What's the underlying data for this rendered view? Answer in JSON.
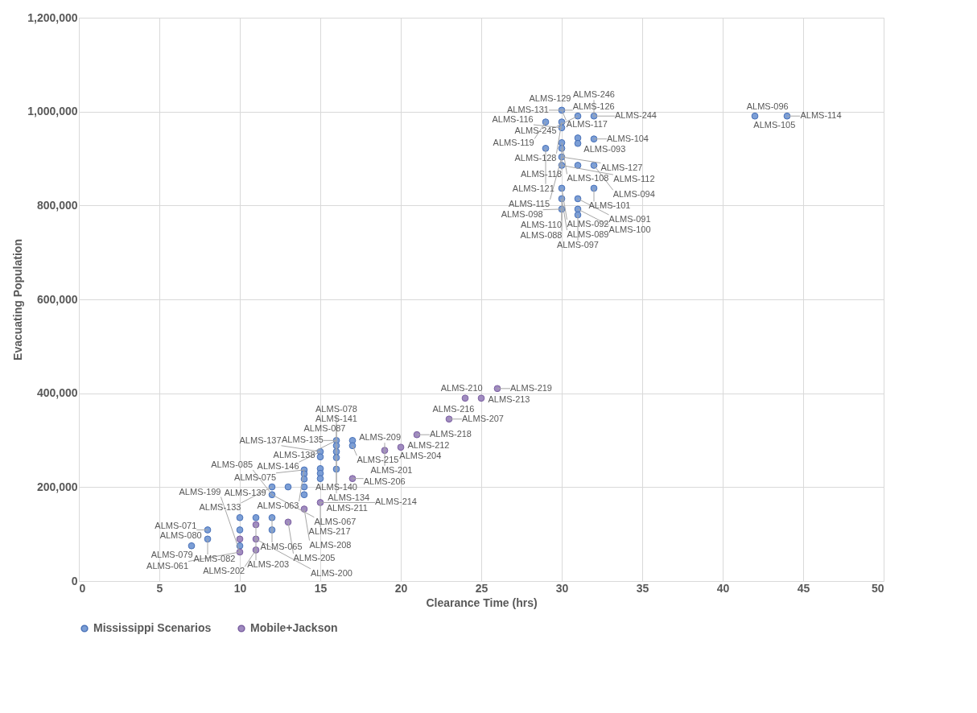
{
  "chart_data": {
    "type": "scatter",
    "xlabel": "Clearance Time (hrs)",
    "ylabel": "Evacuating Population",
    "xlim": [
      0,
      50
    ],
    "xticks": [
      0,
      5,
      10,
      15,
      20,
      25,
      30,
      35,
      40,
      45,
      50
    ],
    "ylim": [
      0,
      1200000
    ],
    "yticks": [
      0,
      {
        "value": 200000,
        "label": "200,000"
      },
      {
        "value": 400000,
        "label": "400,000"
      },
      {
        "value": 600000,
        "label": "600,000"
      },
      {
        "value": 800000,
        "label": "800,000"
      },
      {
        "value": 1000000,
        "label": "1,000,000"
      },
      {
        "value": 1200000,
        "label": "1,200,000"
      }
    ],
    "grid": true,
    "legend": "bottom",
    "marker": "circle",
    "series": [
      {
        "name": "Mississippi Scenarios",
        "color": "#7b9ed6",
        "x": [
          30,
          31,
          32,
          29,
          30,
          30,
          31,
          31,
          32,
          30,
          30,
          29,
          30,
          30,
          31,
          32,
          32,
          30,
          30,
          31,
          30,
          31,
          31,
          42,
          44,
          7,
          8,
          8,
          10,
          10,
          10,
          11,
          12,
          12,
          12,
          12,
          13,
          14,
          14,
          14,
          14,
          14,
          15,
          15,
          15,
          15,
          15,
          16,
          16,
          16,
          16,
          16,
          17,
          17
        ],
        "values": [
          1003000,
          990500,
          990500,
          977800,
          977800,
          965500,
          943800,
          932200,
          941700,
          933800,
          921700,
          921700,
          903300,
          885500,
          885500,
          885500,
          836700,
          836700,
          814400,
          814400,
          792200,
          792200,
          780000,
          990500,
          990500,
          75000,
          89400,
          108900,
          135000,
          108900,
          75000,
          135000,
          135000,
          108900,
          200500,
          183900,
          200500,
          236700,
          228300,
          217200,
          200500,
          183900,
          275600,
          264400,
          239400,
          229400,
          218300,
          299400,
          288300,
          275600,
          262800,
          238300,
          299400,
          288300
        ]
      },
      {
        "name": "Mobile+Jackson",
        "color": "#a08bc0",
        "x": [
          10,
          10,
          11,
          11,
          11,
          13,
          14,
          15,
          17,
          19,
          20,
          21,
          23,
          24,
          25,
          26
        ],
        "values": [
          89400,
          61700,
          120000,
          89400,
          66100,
          125500,
          153300,
          167200,
          218300,
          278300,
          285000,
          311700,
          345000,
          389500,
          389500,
          410000
        ]
      }
    ],
    "annotations": [
      {
        "text": "ALMS-131",
        "x": 30,
        "y": 1003000
      },
      {
        "text": "ALMS-129",
        "x": 30,
        "y": 1003000
      },
      {
        "text": "ALMS-126",
        "x": 30,
        "y": 1003000
      },
      {
        "text": "ALMS-117",
        "x": 30,
        "y": 1003000
      },
      {
        "text": "ALMS-245",
        "x": 31,
        "y": 990500
      },
      {
        "text": "ALMS-244",
        "x": 32,
        "y": 990500
      },
      {
        "text": "ALMS-246",
        "x": 32,
        "y": 990500
      },
      {
        "text": "ALMS-119",
        "x": 29,
        "y": 977800
      },
      {
        "text": "ALMS-128",
        "x": 30,
        "y": 977800
      },
      {
        "text": "ALMS-116",
        "x": 30,
        "y": 965500
      },
      {
        "text": "ALMS-093",
        "x": 31,
        "y": 932200
      },
      {
        "text": "ALMS-104",
        "x": 32,
        "y": 941700
      },
      {
        "text": "ALMS-108",
        "x": 30,
        "y": 933800
      },
      {
        "text": "ALMS-118",
        "x": 30,
        "y": 921700
      },
      {
        "text": "ALMS-121",
        "x": 29,
        "y": 921700
      },
      {
        "text": "ALMS-127",
        "x": 30,
        "y": 903300
      },
      {
        "text": "ALMS-115",
        "x": 30,
        "y": 903300
      },
      {
        "text": "ALMS-112",
        "x": 30,
        "y": 885500
      },
      {
        "text": "ALMS-094",
        "x": 32,
        "y": 885500
      },
      {
        "text": "ALMS-101",
        "x": 32,
        "y": 836700
      },
      {
        "text": "ALMS-092",
        "x": 30,
        "y": 836700
      },
      {
        "text": "ALMS-110",
        "x": 30,
        "y": 814400
      },
      {
        "text": "ALMS-089",
        "x": 30,
        "y": 814400
      },
      {
        "text": "ALMS-091",
        "x": 31,
        "y": 814400
      },
      {
        "text": "ALMS-098",
        "x": 30,
        "y": 792200
      },
      {
        "text": "ALMS-088",
        "x": 30,
        "y": 792200
      },
      {
        "text": "ALMS-100",
        "x": 31,
        "y": 792200
      },
      {
        "text": "ALMS-097",
        "x": 31,
        "y": 780000
      },
      {
        "text": "ALMS-105",
        "x": 42,
        "y": 990500
      },
      {
        "text": "ALMS-114",
        "x": 44,
        "y": 990500
      },
      {
        "text": "ALMS-096",
        "x": 44,
        "y": 990500
      },
      {
        "text": "ALMS-219",
        "x": 26,
        "y": 410000
      },
      {
        "text": "ALMS-213",
        "x": 26,
        "y": 410000
      },
      {
        "text": "ALMS-216",
        "x": 24,
        "y": 389500
      },
      {
        "text": "ALMS-210",
        "x": 25,
        "y": 389500
      },
      {
        "text": "ALMS-218",
        "x": 21,
        "y": 311700
      },
      {
        "text": "ALMS-207",
        "x": 23,
        "y": 345000
      },
      {
        "text": "ALMS-212",
        "x": 21,
        "y": 311700
      },
      {
        "text": "ALMS-215",
        "x": 17,
        "y": 288300
      },
      {
        "text": "ALMS-204",
        "x": 20,
        "y": 285000
      },
      {
        "text": "ALMS-209",
        "x": 19,
        "y": 278300
      },
      {
        "text": "ALMS-201",
        "x": 19,
        "y": 278300
      },
      {
        "text": "ALMS-206",
        "x": 17,
        "y": 218300
      },
      {
        "text": "ALMS-135",
        "x": 16,
        "y": 299400
      },
      {
        "text": "ALMS-087",
        "x": 16,
        "y": 299400
      },
      {
        "text": "ALMS-141",
        "x": 16,
        "y": 299400
      },
      {
        "text": "ALMS-138",
        "x": 16,
        "y": 299400
      },
      {
        "text": "ALMS-140",
        "x": 16,
        "y": 288300
      },
      {
        "text": "ALMS-078",
        "x": 16,
        "y": 275600
      },
      {
        "text": "ALMS-146",
        "x": 15,
        "y": 275600
      },
      {
        "text": "ALMS-137",
        "x": 15,
        "y": 275600
      },
      {
        "text": "ALMS-134",
        "x": 16,
        "y": 262800
      },
      {
        "text": "ALMS-075",
        "x": 14,
        "y": 236700
      },
      {
        "text": "ALMS-063",
        "x": 14,
        "y": 236700
      },
      {
        "text": "ALMS-139",
        "x": 12,
        "y": 200500
      },
      {
        "text": "ALMS-133",
        "x": 12,
        "y": 200500
      },
      {
        "text": "ALMS-085",
        "x": 12,
        "y": 183900
      },
      {
        "text": "ALMS-067",
        "x": 12,
        "y": 183900
      },
      {
        "text": "ALMS-211",
        "x": 15,
        "y": 167200
      },
      {
        "text": "ALMS-217",
        "x": 15,
        "y": 167200
      },
      {
        "text": "ALMS-208",
        "x": 14,
        "y": 153300
      },
      {
        "text": "ALMS-214",
        "x": 15,
        "y": 167200
      },
      {
        "text": "ALMS-065",
        "x": 12,
        "y": 135000
      },
      {
        "text": "ALMS-205",
        "x": 13,
        "y": 125500
      },
      {
        "text": "ALMS-080",
        "x": 8,
        "y": 108900
      },
      {
        "text": "ALMS-071",
        "x": 8,
        "y": 108900
      },
      {
        "text": "ALMS-203",
        "x": 11,
        "y": 120000
      },
      {
        "text": "ALMS-082",
        "x": 8,
        "y": 89400
      },
      {
        "text": "ALMS-200",
        "x": 11,
        "y": 89400
      },
      {
        "text": "ALMS-079",
        "x": 7,
        "y": 75000
      },
      {
        "text": "ALMS-202",
        "x": 11,
        "y": 66100
      },
      {
        "text": "ALMS-061",
        "x": 10,
        "y": 61700
      },
      {
        "text": "ALMS-199",
        "x": 10,
        "y": 61700
      }
    ]
  }
}
